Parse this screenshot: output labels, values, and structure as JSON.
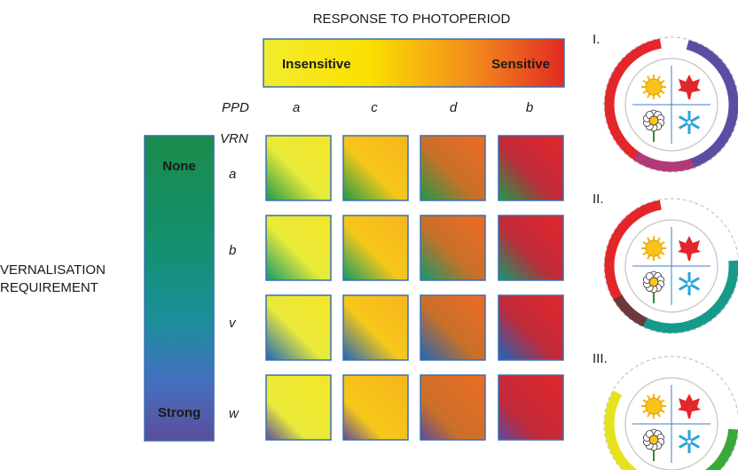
{
  "header": {
    "title": "RESPONSE TO PHOTOPERIOD"
  },
  "photoperiod_bar": {
    "left_label": "Insensitive",
    "right_label": "Sensitive"
  },
  "ppd": {
    "label": "PPD",
    "alleles": [
      "a",
      "c",
      "d",
      "b"
    ]
  },
  "vrn": {
    "label": "VRN",
    "alleles": [
      "a",
      "b",
      "v",
      "w"
    ]
  },
  "vernalisation_bar": {
    "top_label": "None",
    "bottom_label": "Strong"
  },
  "side_title": {
    "lines": [
      "VERNALISATION",
      "REQUIREMENT"
    ]
  },
  "panels": [
    {
      "label": "I."
    },
    {
      "label": "II."
    },
    {
      "label": "III."
    }
  ]
}
